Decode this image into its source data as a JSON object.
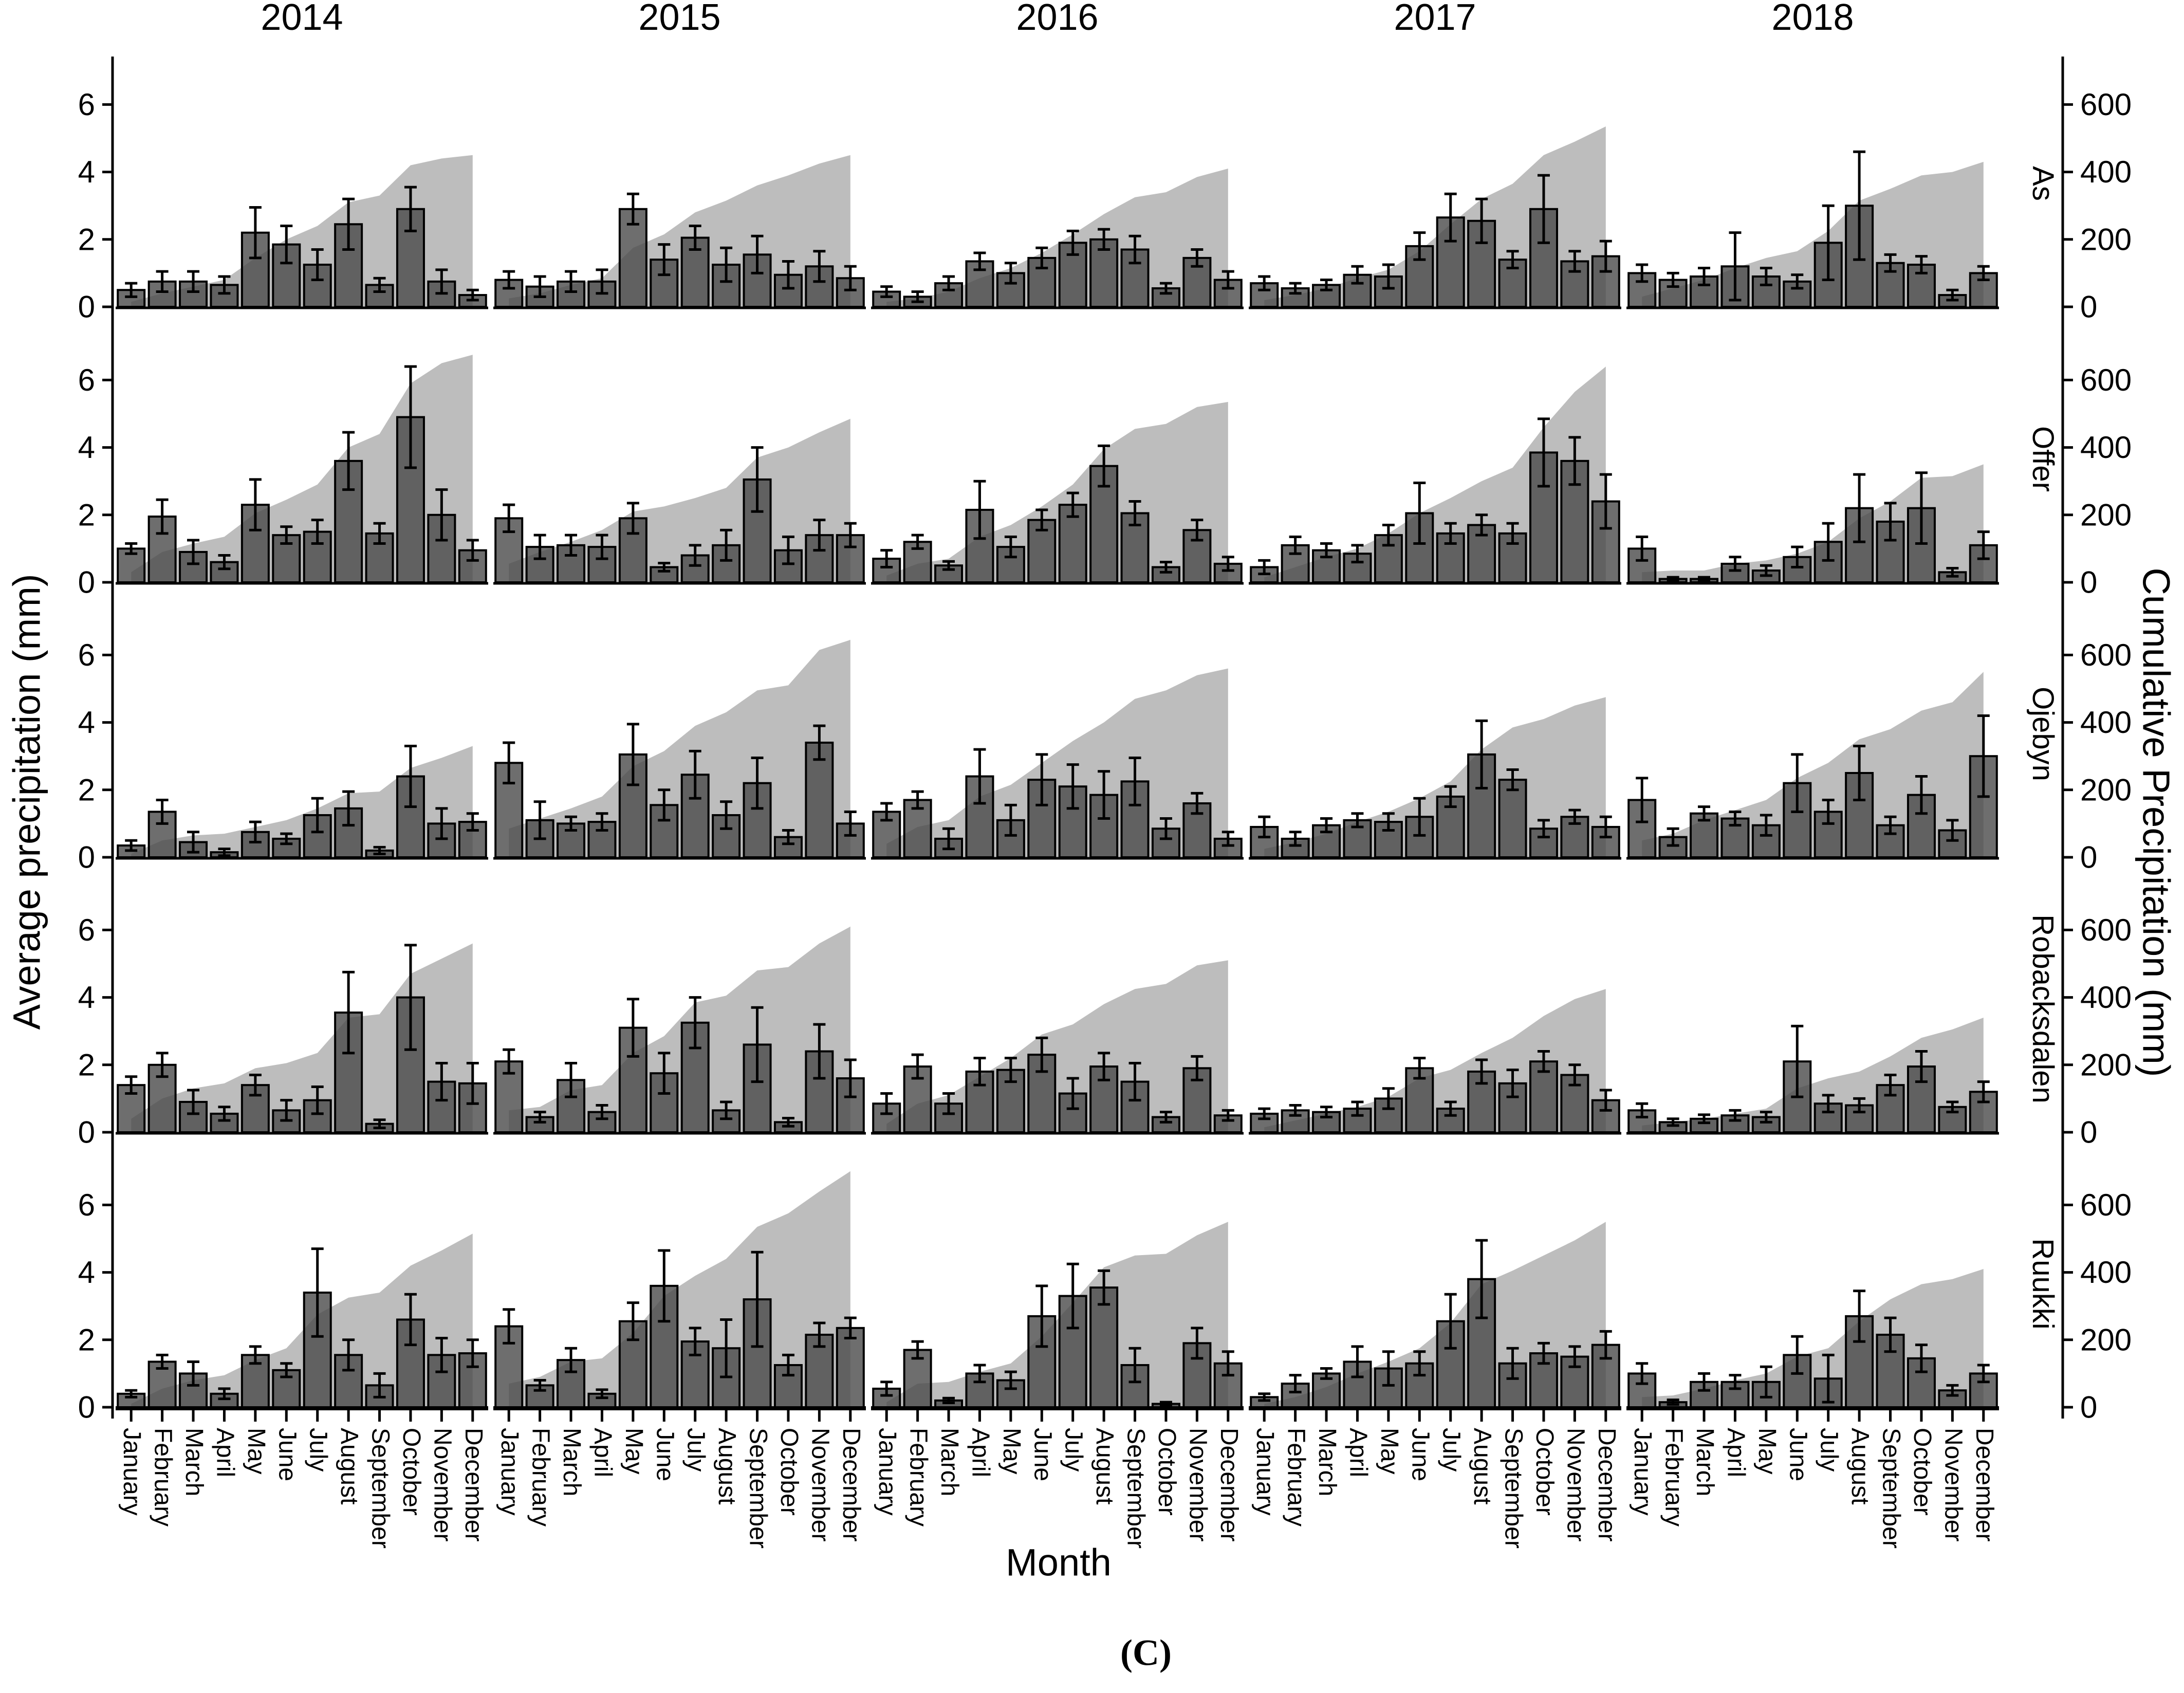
{
  "figure": {
    "caption": "(C)",
    "xlabel": "Month",
    "ylabel_left": "Average precipitation (mm)",
    "ylabel_right": "Cumulative Precipitation (mm)"
  },
  "chart_data": {
    "type": "bar",
    "subtype": "faceted bar chart with error bars and cumulative area overlay",
    "months": [
      "January",
      "February",
      "March",
      "April",
      "May",
      "June",
      "July",
      "August",
      "September",
      "October",
      "November",
      "December"
    ],
    "years": [
      "2014",
      "2015",
      "2016",
      "2017",
      "2018"
    ],
    "sites": [
      "As",
      "Offer",
      "Ojebyn",
      "Robacksdalen",
      "Ruukki"
    ],
    "left_axis": {
      "label": "Average precipitation (mm)",
      "ticks": [
        0,
        2,
        4,
        6
      ],
      "range": [
        0,
        7.3
      ]
    },
    "right_axis": {
      "label": "Cumulative Precipitation (mm)",
      "ticks": [
        0,
        200,
        400,
        600
      ],
      "range": [
        0,
        730
      ]
    },
    "legend_position": "none",
    "grid": false,
    "colors": {
      "bar": "#4a4a4a",
      "area": "#bdbdbd",
      "axis": "#000000",
      "error": "#000000"
    },
    "panels": [
      {
        "site": "As",
        "year": "2014",
        "bars": [
          0.5,
          0.75,
          0.75,
          0.65,
          2.2,
          1.85,
          1.25,
          2.45,
          0.65,
          2.9,
          0.75,
          0.35
        ],
        "errors": [
          0.2,
          0.3,
          0.3,
          0.25,
          0.75,
          0.55,
          0.45,
          0.75,
          0.2,
          0.65,
          0.35,
          0.15
        ],
        "cumulative": [
          15,
          40,
          60,
          80,
          145,
          200,
          240,
          310,
          330,
          420,
          440,
          450
        ]
      },
      {
        "site": "As",
        "year": "2015",
        "bars": [
          0.8,
          0.6,
          0.75,
          0.75,
          2.9,
          1.4,
          2.05,
          1.25,
          1.55,
          0.95,
          1.2,
          0.85
        ],
        "errors": [
          0.25,
          0.3,
          0.3,
          0.35,
          0.45,
          0.45,
          0.35,
          0.5,
          0.55,
          0.4,
          0.45,
          0.35
        ],
        "cumulative": [
          25,
          40,
          65,
          85,
          175,
          215,
          280,
          315,
          360,
          390,
          425,
          450
        ]
      },
      {
        "site": "As",
        "year": "2016",
        "bars": [
          0.45,
          0.3,
          0.7,
          1.35,
          1.0,
          1.45,
          1.9,
          2.0,
          1.7,
          0.55,
          1.45,
          0.8
        ],
        "errors": [
          0.15,
          0.15,
          0.2,
          0.25,
          0.3,
          0.3,
          0.35,
          0.3,
          0.4,
          0.15,
          0.25,
          0.25
        ],
        "cumulative": [
          15,
          25,
          45,
          85,
          115,
          160,
          215,
          275,
          325,
          340,
          385,
          410
        ]
      },
      {
        "site": "As",
        "year": "2017",
        "bars": [
          0.7,
          0.55,
          0.65,
          0.95,
          0.9,
          1.8,
          2.65,
          2.55,
          1.4,
          2.9,
          1.35,
          1.5
        ],
        "errors": [
          0.2,
          0.15,
          0.15,
          0.25,
          0.35,
          0.4,
          0.7,
          0.65,
          0.25,
          1.0,
          0.3,
          0.45
        ],
        "cumulative": [
          20,
          35,
          55,
          85,
          110,
          165,
          245,
          320,
          365,
          450,
          490,
          535
        ]
      },
      {
        "site": "As",
        "year": "2018",
        "bars": [
          1.0,
          0.8,
          0.9,
          1.2,
          0.9,
          0.75,
          1.9,
          3.0,
          1.3,
          1.25,
          0.35,
          1.0
        ],
        "errors": [
          0.25,
          0.2,
          0.25,
          1.0,
          0.25,
          0.2,
          1.1,
          1.6,
          0.25,
          0.25,
          0.15,
          0.2
        ],
        "cumulative": [
          30,
          55,
          80,
          115,
          145,
          165,
          225,
          315,
          350,
          390,
          400,
          430
        ]
      },
      {
        "site": "Offer",
        "year": "2014",
        "bars": [
          1.0,
          1.95,
          0.9,
          0.6,
          2.3,
          1.4,
          1.5,
          3.6,
          1.45,
          4.9,
          2.0,
          0.95
        ],
        "errors": [
          0.15,
          0.5,
          0.35,
          0.2,
          0.75,
          0.25,
          0.35,
          0.85,
          0.3,
          1.5,
          0.75,
          0.3
        ],
        "cumulative": [
          30,
          90,
          115,
          135,
          205,
          245,
          290,
          400,
          440,
          590,
          650,
          675
        ]
      },
      {
        "site": "Offer",
        "year": "2015",
        "bars": [
          1.9,
          1.05,
          1.1,
          1.05,
          1.9,
          0.45,
          0.8,
          1.1,
          3.05,
          0.95,
          1.4,
          1.4
        ],
        "errors": [
          0.4,
          0.35,
          0.3,
          0.35,
          0.45,
          0.12,
          0.3,
          0.45,
          0.95,
          0.4,
          0.45,
          0.35
        ],
        "cumulative": [
          55,
          90,
          120,
          155,
          210,
          225,
          250,
          280,
          370,
          400,
          445,
          485
        ]
      },
      {
        "site": "Offer",
        "year": "2016",
        "bars": [
          0.7,
          1.2,
          0.5,
          2.15,
          1.05,
          1.85,
          2.3,
          3.45,
          2.05,
          0.45,
          1.55,
          0.55
        ],
        "errors": [
          0.25,
          0.2,
          0.12,
          0.85,
          0.3,
          0.3,
          0.35,
          0.6,
          0.35,
          0.15,
          0.3,
          0.2
        ],
        "cumulative": [
          20,
          55,
          70,
          135,
          170,
          225,
          290,
          395,
          455,
          470,
          520,
          535
        ]
      },
      {
        "site": "Offer",
        "year": "2017",
        "bars": [
          0.45,
          1.1,
          0.95,
          0.85,
          1.4,
          2.05,
          1.45,
          1.7,
          1.45,
          3.85,
          3.6,
          2.4
        ],
        "errors": [
          0.2,
          0.25,
          0.2,
          0.25,
          0.3,
          0.9,
          0.3,
          0.3,
          0.3,
          1.0,
          0.7,
          0.8
        ],
        "cumulative": [
          15,
          45,
          75,
          100,
          145,
          205,
          250,
          300,
          340,
          460,
          565,
          640
        ]
      },
      {
        "site": "Offer",
        "year": "2018",
        "bars": [
          1.0,
          0.1,
          0.1,
          0.55,
          0.35,
          0.75,
          1.2,
          2.2,
          1.8,
          2.2,
          0.3,
          1.1
        ],
        "errors": [
          0.35,
          0.05,
          0.05,
          0.2,
          0.15,
          0.3,
          0.55,
          1.0,
          0.55,
          1.05,
          0.12,
          0.4
        ],
        "cumulative": [
          30,
          35,
          35,
          55,
          65,
          85,
          120,
          190,
          240,
          310,
          315,
          350
        ]
      },
      {
        "site": "Ojebyn",
        "year": "2014",
        "bars": [
          0.35,
          1.35,
          0.45,
          0.15,
          0.75,
          0.55,
          1.25,
          1.45,
          0.2,
          2.4,
          1.0,
          1.05
        ],
        "errors": [
          0.15,
          0.35,
          0.3,
          0.1,
          0.3,
          0.15,
          0.5,
          0.5,
          0.1,
          0.9,
          0.45,
          0.25
        ],
        "cumulative": [
          10,
          50,
          65,
          70,
          90,
          110,
          145,
          190,
          195,
          265,
          295,
          330
        ]
      },
      {
        "site": "Ojebyn",
        "year": "2015",
        "bars": [
          2.8,
          1.1,
          1.0,
          1.05,
          3.05,
          1.55,
          2.45,
          1.25,
          2.2,
          0.6,
          3.4,
          1.0
        ],
        "errors": [
          0.6,
          0.55,
          0.2,
          0.25,
          0.9,
          0.45,
          0.7,
          0.4,
          0.75,
          0.2,
          0.5,
          0.35
        ],
        "cumulative": [
          85,
          115,
          145,
          180,
          270,
          315,
          390,
          430,
          495,
          510,
          615,
          645
        ]
      },
      {
        "site": "Ojebyn",
        "year": "2016",
        "bars": [
          1.35,
          1.7,
          0.55,
          2.4,
          1.1,
          2.3,
          2.1,
          1.85,
          2.25,
          0.85,
          1.6,
          0.55
        ],
        "errors": [
          0.25,
          0.25,
          0.3,
          0.8,
          0.45,
          0.75,
          0.65,
          0.7,
          0.7,
          0.3,
          0.3,
          0.2
        ],
        "cumulative": [
          40,
          90,
          110,
          180,
          215,
          280,
          345,
          400,
          470,
          495,
          540,
          560
        ]
      },
      {
        "site": "Ojebyn",
        "year": "2017",
        "bars": [
          0.9,
          0.55,
          0.95,
          1.1,
          1.05,
          1.2,
          1.8,
          3.05,
          2.3,
          0.85,
          1.2,
          0.9
        ],
        "errors": [
          0.3,
          0.2,
          0.2,
          0.2,
          0.25,
          0.55,
          0.3,
          1.0,
          0.3,
          0.25,
          0.2,
          0.3
        ],
        "cumulative": [
          25,
          45,
          70,
          105,
          135,
          175,
          225,
          320,
          385,
          410,
          450,
          475
        ]
      },
      {
        "site": "Ojebyn",
        "year": "2018",
        "bars": [
          1.7,
          0.6,
          1.3,
          1.15,
          0.95,
          2.2,
          1.35,
          2.5,
          0.95,
          1.85,
          0.8,
          3.0
        ],
        "errors": [
          0.65,
          0.25,
          0.2,
          0.2,
          0.3,
          0.85,
          0.35,
          0.8,
          0.25,
          0.55,
          0.3,
          1.2
        ],
        "cumulative": [
          50,
          70,
          110,
          140,
          170,
          235,
          280,
          350,
          380,
          435,
          460,
          550
        ]
      },
      {
        "site": "Robacksdalen",
        "year": "2014",
        "bars": [
          1.4,
          2.0,
          0.9,
          0.55,
          1.4,
          0.65,
          0.95,
          3.55,
          0.25,
          4.0,
          1.5,
          1.45
        ],
        "errors": [
          0.25,
          0.35,
          0.35,
          0.2,
          0.3,
          0.3,
          0.4,
          1.2,
          0.12,
          1.55,
          0.55,
          0.6
        ],
        "cumulative": [
          40,
          100,
          130,
          145,
          190,
          205,
          235,
          340,
          350,
          470,
          515,
          560
        ]
      },
      {
        "site": "Robacksdalen",
        "year": "2015",
        "bars": [
          2.1,
          0.45,
          1.55,
          0.6,
          3.1,
          1.75,
          3.25,
          0.65,
          2.6,
          0.3,
          2.4,
          1.6
        ],
        "errors": [
          0.35,
          0.15,
          0.5,
          0.2,
          0.85,
          0.6,
          0.75,
          0.25,
          1.1,
          0.12,
          0.8,
          0.55
        ],
        "cumulative": [
          65,
          75,
          125,
          140,
          235,
          285,
          385,
          405,
          480,
          490,
          560,
          610
        ]
      },
      {
        "site": "Robacksdalen",
        "year": "2016",
        "bars": [
          0.85,
          1.95,
          0.85,
          1.8,
          1.85,
          2.3,
          1.15,
          1.95,
          1.5,
          0.45,
          1.9,
          0.5
        ],
        "errors": [
          0.3,
          0.35,
          0.3,
          0.4,
          0.35,
          0.5,
          0.45,
          0.4,
          0.55,
          0.15,
          0.35,
          0.15
        ],
        "cumulative": [
          25,
          85,
          110,
          165,
          220,
          290,
          320,
          380,
          425,
          440,
          495,
          510
        ]
      },
      {
        "site": "Robacksdalen",
        "year": "2017",
        "bars": [
          0.55,
          0.65,
          0.6,
          0.7,
          1.0,
          1.9,
          0.7,
          1.8,
          1.45,
          2.1,
          1.7,
          0.95
        ],
        "errors": [
          0.15,
          0.15,
          0.15,
          0.2,
          0.3,
          0.3,
          0.2,
          0.35,
          0.4,
          0.3,
          0.3,
          0.3
        ],
        "cumulative": [
          15,
          35,
          55,
          75,
          105,
          160,
          185,
          235,
          280,
          345,
          395,
          425
        ]
      },
      {
        "site": "Robacksdalen",
        "year": "2018",
        "bars": [
          0.65,
          0.3,
          0.4,
          0.5,
          0.45,
          2.1,
          0.85,
          0.8,
          1.4,
          1.95,
          0.75,
          1.2
        ],
        "errors": [
          0.2,
          0.1,
          0.12,
          0.15,
          0.15,
          1.05,
          0.25,
          0.2,
          0.3,
          0.45,
          0.15,
          0.3
        ],
        "cumulative": [
          20,
          30,
          40,
          55,
          70,
          130,
          160,
          180,
          225,
          280,
          305,
          340
        ]
      },
      {
        "site": "Ruukki",
        "year": "2014",
        "bars": [
          0.4,
          1.35,
          1.0,
          0.4,
          1.55,
          1.1,
          3.4,
          1.55,
          0.65,
          2.6,
          1.55,
          1.6
        ],
        "errors": [
          0.1,
          0.2,
          0.35,
          0.15,
          0.25,
          0.2,
          1.3,
          0.45,
          0.35,
          0.75,
          0.5,
          0.4
        ],
        "cumulative": [
          10,
          55,
          80,
          95,
          140,
          175,
          275,
          325,
          340,
          420,
          465,
          515
        ]
      },
      {
        "site": "Ruukki",
        "year": "2015",
        "bars": [
          2.4,
          0.65,
          1.4,
          0.4,
          2.55,
          3.6,
          1.95,
          1.75,
          3.2,
          1.25,
          2.15,
          2.35
        ],
        "errors": [
          0.5,
          0.15,
          0.35,
          0.12,
          0.55,
          1.05,
          0.4,
          0.85,
          1.4,
          0.3,
          0.35,
          0.3
        ],
        "cumulative": [
          70,
          90,
          135,
          145,
          220,
          330,
          390,
          440,
          535,
          575,
          640,
          700
        ]
      },
      {
        "site": "Ruukki",
        "year": "2016",
        "bars": [
          0.55,
          1.7,
          0.2,
          1.0,
          0.8,
          2.7,
          3.3,
          3.55,
          1.25,
          0.1,
          1.9,
          1.3
        ],
        "errors": [
          0.2,
          0.25,
          0.07,
          0.25,
          0.25,
          0.9,
          0.95,
          0.5,
          0.5,
          0.05,
          0.45,
          0.35
        ],
        "cumulative": [
          15,
          70,
          75,
          105,
          130,
          210,
          310,
          415,
          450,
          455,
          510,
          550
        ]
      },
      {
        "site": "Ruukki",
        "year": "2017",
        "bars": [
          0.3,
          0.7,
          1.0,
          1.35,
          1.15,
          1.3,
          2.55,
          3.8,
          1.3,
          1.6,
          1.5,
          1.85
        ],
        "errors": [
          0.1,
          0.25,
          0.15,
          0.45,
          0.5,
          0.35,
          0.8,
          1.15,
          0.45,
          0.3,
          0.3,
          0.4
        ],
        "cumulative": [
          10,
          30,
          60,
          100,
          135,
          175,
          250,
          365,
          405,
          450,
          495,
          550
        ]
      },
      {
        "site": "Ruukki",
        "year": "2018",
        "bars": [
          1.0,
          0.15,
          0.75,
          0.75,
          0.75,
          1.55,
          0.85,
          2.7,
          2.15,
          1.45,
          0.5,
          1.0
        ],
        "errors": [
          0.3,
          0.07,
          0.25,
          0.2,
          0.45,
          0.55,
          0.7,
          0.75,
          0.5,
          0.4,
          0.15,
          0.25
        ],
        "cumulative": [
          30,
          35,
          55,
          80,
          100,
          150,
          175,
          255,
          320,
          365,
          380,
          410
        ]
      }
    ]
  }
}
